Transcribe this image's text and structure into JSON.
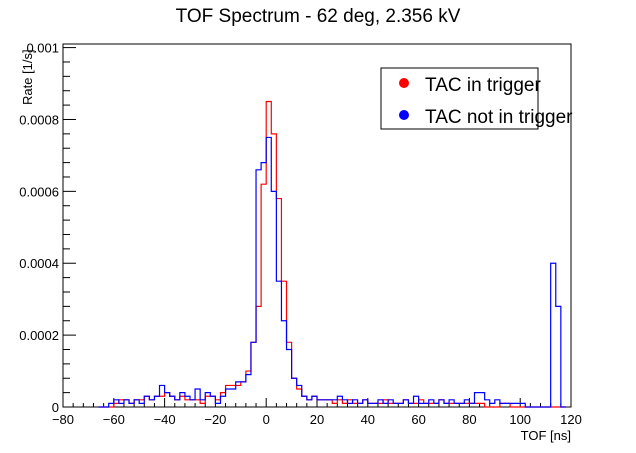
{
  "chart_data": {
    "type": "line",
    "style": "step-histogram",
    "title": "TOF Spectrum - 62 deg, 2.356 kV",
    "xlabel": "TOF [ns]",
    "ylabel": "Rate [1/s]",
    "xlim": [
      -80,
      120
    ],
    "ylim": [
      0,
      0.00101
    ],
    "bin_width": 2,
    "x_ticks": [
      -80,
      -60,
      -40,
      -20,
      0,
      20,
      40,
      60,
      80,
      100,
      120
    ],
    "y_ticks": [
      0,
      0.0002,
      0.0004,
      0.0006,
      0.0008,
      0.001
    ],
    "x_tick_labels": [
      "−80",
      "−60",
      "−40",
      "−20",
      "0",
      "20",
      "40",
      "60",
      "80",
      "100",
      "120"
    ],
    "y_tick_labels": [
      "0",
      "0.0002",
      "0.0004",
      "0.0006",
      "0.0008",
      "0.001"
    ],
    "legend_position": "top-right",
    "grid": false,
    "x_start": -66,
    "series": [
      {
        "name": "TAC in trigger",
        "color": "#ff0000",
        "values": [
          0.0,
          0.0,
          0.0,
          1e-05,
          2e-05,
          2e-05,
          1e-05,
          2e-05,
          2e-05,
          3e-05,
          2e-05,
          3e-05,
          3e-05,
          4e-05,
          3e-05,
          2e-05,
          3e-05,
          2e-05,
          2e-05,
          2e-05,
          1e-05,
          3e-05,
          3e-05,
          2e-05,
          4e-05,
          6e-05,
          6e-05,
          6e-05,
          7e-05,
          0.0001,
          0.00018,
          0.00028,
          0.00062,
          0.00085,
          0.00076,
          0.00058,
          0.00035,
          0.00018,
          8e-05,
          5e-05,
          3e-05,
          2e-05,
          3e-05,
          2e-05,
          2e-05,
          2e-05,
          1e-05,
          2e-05,
          1e-05,
          2e-05,
          1e-05,
          1e-05,
          2e-05,
          1e-05,
          1e-05,
          1e-05,
          2e-05,
          1e-05,
          1e-05,
          1e-05,
          2e-05,
          1e-05,
          1e-05,
          2e-05,
          1e-05,
          1e-05,
          1e-05,
          2e-05,
          1e-05,
          1e-05,
          1e-05,
          1e-05,
          1e-05,
          1e-05,
          1e-05,
          1e-05,
          0.0,
          0.0,
          0.0,
          1e-05,
          1e-05,
          0.0,
          0.0,
          0.0,
          0.0,
          0.0,
          0.0,
          0.0,
          0.0,
          0.0,
          0.0,
          0.0
        ]
      },
      {
        "name": "TAC not in trigger",
        "color": "#0000ff",
        "values": [
          0.0,
          0.0,
          1e-05,
          2e-05,
          1e-05,
          2e-05,
          1e-05,
          2e-05,
          1e-05,
          3e-05,
          2e-05,
          3e-05,
          6e-05,
          4e-05,
          3e-05,
          2e-05,
          4e-05,
          3e-05,
          2e-05,
          5e-05,
          2e-05,
          4e-05,
          3e-05,
          1e-05,
          3e-05,
          5e-05,
          5e-05,
          7e-05,
          7e-05,
          9e-05,
          0.00018,
          0.00066,
          0.00068,
          0.00075,
          0.0006,
          0.00035,
          0.00024,
          0.00016,
          8e-05,
          6e-05,
          3e-05,
          2e-05,
          3e-05,
          2e-05,
          2e-05,
          2e-05,
          2e-05,
          3e-05,
          2e-05,
          1e-05,
          2e-05,
          1e-05,
          2e-05,
          1e-05,
          1e-05,
          2e-05,
          1e-05,
          2e-05,
          1e-05,
          1e-05,
          2e-05,
          1e-05,
          3e-05,
          1e-05,
          1e-05,
          2e-05,
          1e-05,
          2e-05,
          1e-05,
          2e-05,
          1e-05,
          1e-05,
          2e-05,
          1e-05,
          4e-05,
          4e-05,
          2e-05,
          1e-05,
          2e-05,
          1e-05,
          1e-05,
          1e-05,
          1e-05,
          1e-05,
          0.0,
          0.0,
          0.0,
          0.0,
          0.0,
          0.0004,
          0.00028,
          0.0
        ]
      }
    ]
  }
}
